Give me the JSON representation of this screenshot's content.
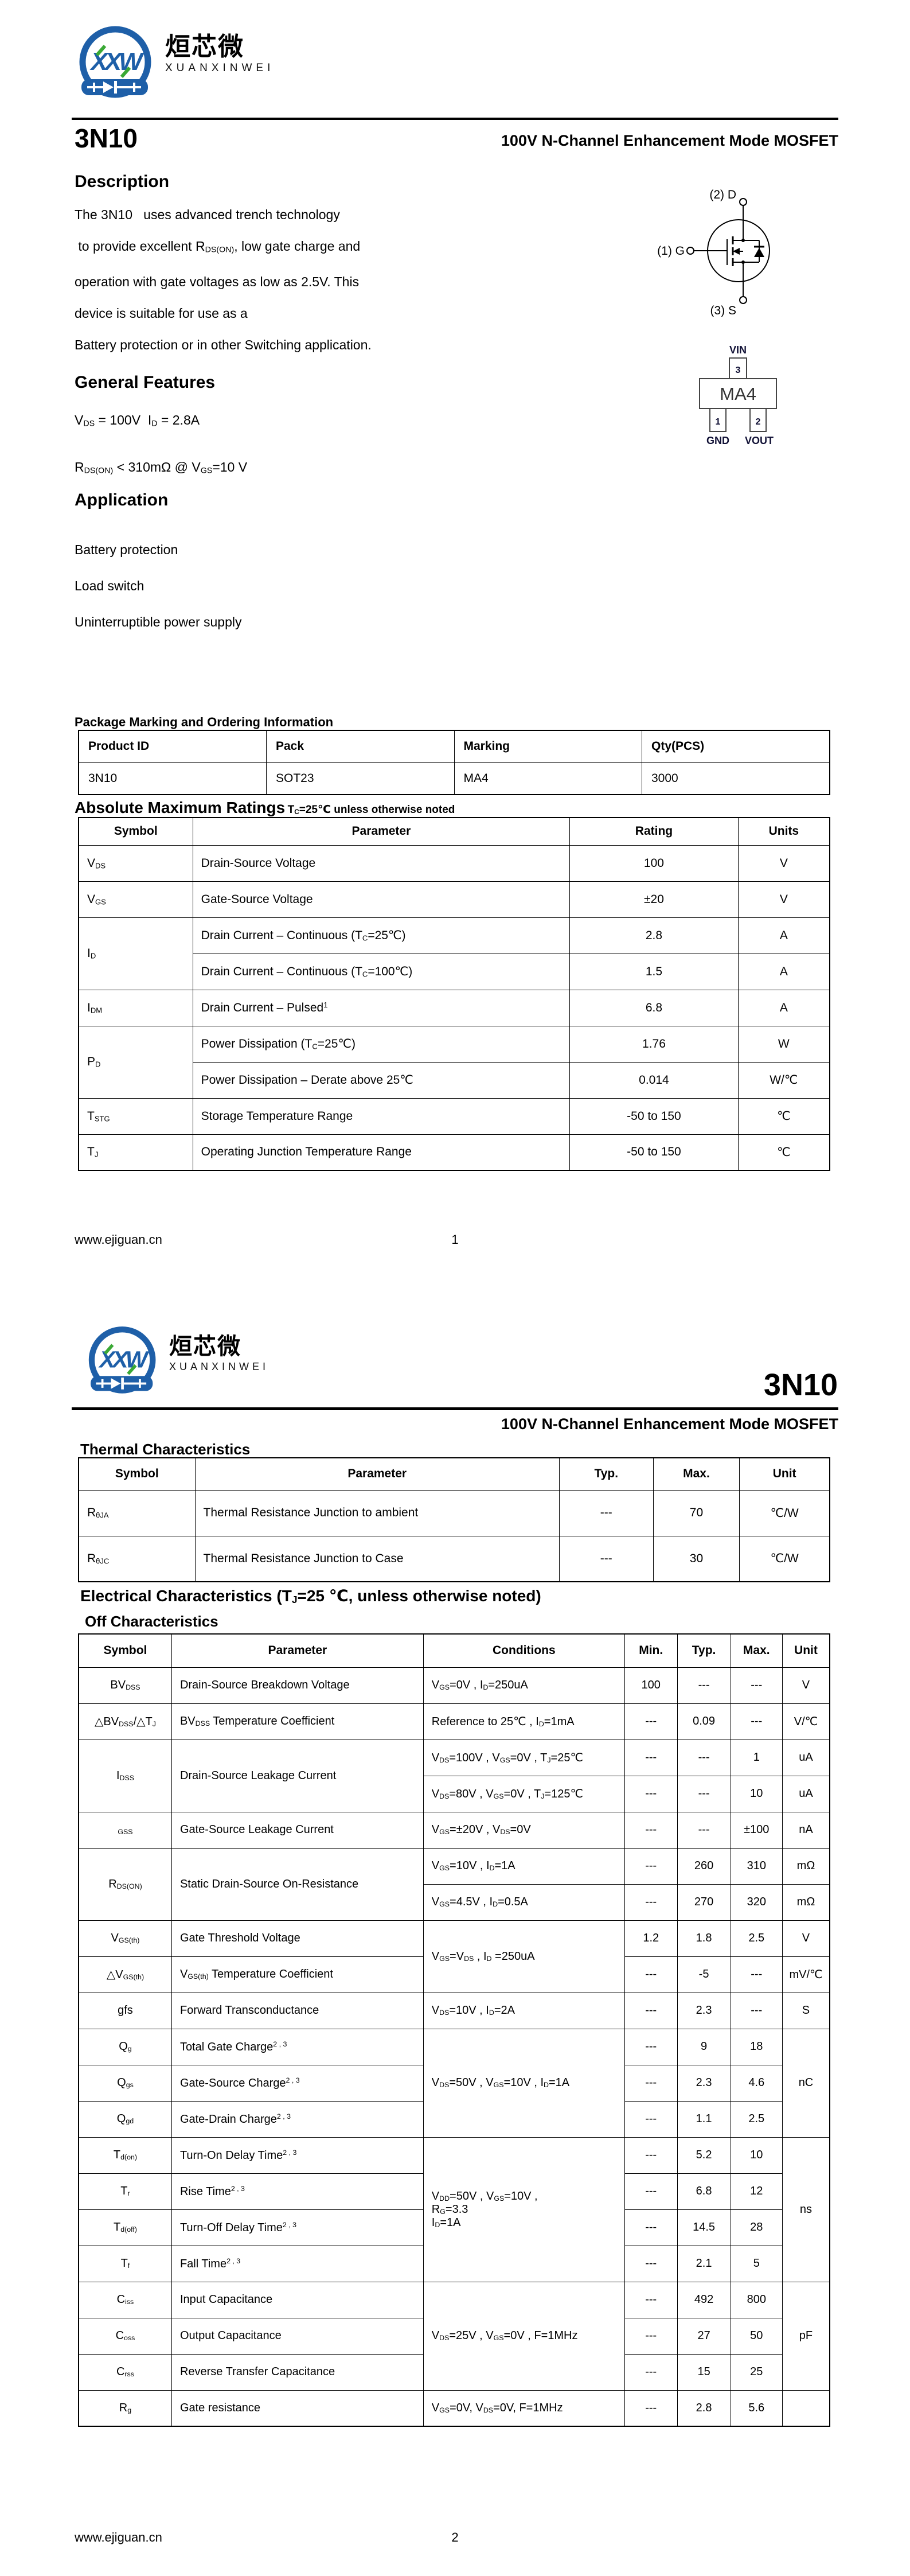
{
  "brand": {
    "logo_monogram": "XXW",
    "logo_cn": "烜芯微",
    "logo_en": "XUANXINWEI",
    "accent_blue": "#1e5fa8",
    "accent_green": "#3aa935"
  },
  "footer": {
    "site": "www.ejiguan.cn"
  },
  "page1": {
    "part_number": "3N10",
    "subtitle": "100V N-Channel Enhancement Mode MOSFET",
    "page_number": "1",
    "description": {
      "title": "Description",
      "lines": [
        "The 3N10   uses advanced trench technology",
        " to provide excellent R~DS(ON)~, low gate charge and",
        "operation with gate voltages as low as 2.5V. This",
        "device is suitable for use as a",
        "Battery protection or in other Switching application."
      ]
    },
    "general_features": {
      "title": "General Features",
      "lines": [
        "V~DS~ = 100V  I~D~ = 2.8A",
        "R~DS(ON)~ < 310mΩ @ V~GS~=10 V"
      ]
    },
    "application": {
      "title": "Application",
      "items": [
        "Battery protection",
        "Load switch",
        "Uninterruptible power supply"
      ]
    },
    "mosfet_symbol": {
      "drain": "(2) D",
      "gate": "(1) G",
      "source": "(3) S"
    },
    "package_diagram": {
      "top_label": "VIN",
      "pin3": "3",
      "marking": "MA4",
      "pin1": "1",
      "pin2": "2",
      "bottom_left": "GND",
      "bottom_right": "VOUT"
    },
    "ordering": {
      "title": "Package Marking and Ordering Information",
      "headers": [
        "Product ID",
        "Pack",
        "Marking",
        "Qty(PCS)"
      ],
      "rows": [
        [
          "3N10",
          "SOT23",
          "MA4",
          "3000"
        ]
      ]
    },
    "abs_max": {
      "title": "Absolute Maximum Ratings",
      "note": "T~C~=25℃ unless otherwise noted",
      "headers": [
        "Symbol",
        "Parameter",
        "Rating",
        "Units"
      ],
      "rows": [
        [
          {
            "t": "V~DS~",
            "cls": "l"
          },
          {
            "t": "Drain-Source Voltage",
            "cls": "l"
          },
          "100",
          "V"
        ],
        [
          {
            "t": "V~GS~",
            "cls": "l"
          },
          {
            "t": "Gate-Source Voltage",
            "cls": "l"
          },
          "±20",
          "V"
        ],
        [
          {
            "t": "I~D~",
            "cls": "l",
            "rs": 2
          },
          {
            "t": "Drain Current – Continuous (T~C~=25℃)",
            "cls": "l"
          },
          "2.8",
          "A"
        ],
        [
          {
            "t": "Drain Current – Continuous (T~C~=100℃)",
            "cls": "l"
          },
          "1.5",
          "A"
        ],
        [
          {
            "t": "I~DM~",
            "cls": "l"
          },
          {
            "t": "Drain Current – Pulsed^1^",
            "cls": "l"
          },
          "6.8",
          "A"
        ],
        [
          {
            "t": "P~D~",
            "cls": "l",
            "rs": 2
          },
          {
            "t": "Power Dissipation (T~C~=25℃)",
            "cls": "l"
          },
          "1.76",
          "W"
        ],
        [
          {
            "t": "Power Dissipation – Derate above 25℃",
            "cls": "l"
          },
          "0.014",
          "W/℃"
        ],
        [
          {
            "t": "T~STG~",
            "cls": "l"
          },
          {
            "t": "Storage Temperature Range",
            "cls": "l"
          },
          "-50 to 150",
          "℃"
        ],
        [
          {
            "t": "T~J~",
            "cls": "l"
          },
          {
            "t": "Operating Junction Temperature Range",
            "cls": "l"
          },
          "-50 to 150",
          "℃"
        ]
      ]
    }
  },
  "page2": {
    "part_number": "3N10",
    "subtitle": "100V N-Channel Enhancement Mode MOSFET",
    "page_number": "2",
    "thermal": {
      "title": "Thermal Characteristics",
      "headers": [
        "Symbol",
        "Parameter",
        "Typ.",
        "Max.",
        "Unit"
      ],
      "rows": [
        [
          {
            "t": "R~θJA~",
            "cls": "l"
          },
          {
            "t": "Thermal Resistance Junction to ambient",
            "cls": "l"
          },
          "---",
          "70",
          "℃/W"
        ],
        [
          {
            "t": "R~θJC~",
            "cls": "l"
          },
          {
            "t": "Thermal Resistance Junction to Case",
            "cls": "l"
          },
          "---",
          "30",
          "℃/W"
        ]
      ]
    },
    "electrical": {
      "title": "Electrical Characteristics (T~J~=25 ℃, unless otherwise noted)",
      "subtitle": "Off Characteristics",
      "headers": [
        "Symbol",
        "Parameter",
        "Conditions",
        "Min.",
        "Typ.",
        "Max.",
        "Unit"
      ],
      "rows": [
        [
          "BV~DSS~",
          {
            "t": "Drain-Source Breakdown Voltage",
            "cls": "l"
          },
          {
            "t": "V~GS~=0V , I~D~=250uA",
            "cls": "l"
          },
          "100",
          "---",
          "---",
          "V"
        ],
        [
          "△BV~DSS~/△T~J~",
          {
            "t": "BV~DSS~ Temperature Coefficient",
            "cls": "l"
          },
          {
            "t": "Reference to 25℃ , I~D~=1mA",
            "cls": "l"
          },
          "---",
          "0.09",
          "---",
          "V/℃"
        ],
        [
          {
            "t": "I~DSS~",
            "rs": 2
          },
          {
            "t": "Drain-Source Leakage Current",
            "cls": "l",
            "rs": 2
          },
          {
            "t": "V~DS~=100V , V~GS~=0V , T~J~=25℃",
            "cls": "l"
          },
          "---",
          "---",
          "1",
          "uA"
        ],
        [
          {
            "t": "V~DS~=80V , V~GS~=0V , T~J~=125℃",
            "cls": "l"
          },
          "---",
          "---",
          "10",
          "uA"
        ],
        [
          "~GSS~",
          {
            "t": "Gate-Source Leakage Current",
            "cls": "l"
          },
          {
            "t": "V~GS~=±20V , V~DS~=0V",
            "cls": "l"
          },
          "---",
          "---",
          "±100",
          "nA"
        ],
        [
          {
            "t": "R~DS(ON)~",
            "rs": 2
          },
          {
            "t": "Static Drain-Source On-Resistance",
            "cls": "l",
            "rs": 2
          },
          {
            "t": "V~GS~=10V , I~D~=1A",
            "cls": "l"
          },
          "---",
          "260",
          "310",
          "mΩ"
        ],
        [
          {
            "t": "V~GS~=4.5V , I~D~=0.5A",
            "cls": "l"
          },
          "---",
          "270",
          "320",
          "mΩ"
        ],
        [
          "V~GS(th)~",
          {
            "t": "Gate Threshold Voltage",
            "cls": "l"
          },
          {
            "t": "V~GS~=V~DS~ , I~D~ =250uA",
            "cls": "l",
            "rs": 2
          },
          "1.2",
          "1.8",
          "2.5",
          "V"
        ],
        [
          "△V~GS(th)~",
          {
            "t": "V~GS(th)~ Temperature Coefficient",
            "cls": "l"
          },
          "---",
          "-5",
          "---",
          "mV/℃"
        ],
        [
          "gfs",
          {
            "t": "Forward Transconductance",
            "cls": "l"
          },
          {
            "t": "V~DS~=10V , I~D~=2A",
            "cls": "l"
          },
          "---",
          "2.3",
          "---",
          "S"
        ],
        [
          "Q~g~",
          {
            "t": "Total Gate Charge^2 , 3^",
            "cls": "l"
          },
          {
            "t": "V~DS~=50V , V~GS~=10V , I~D~=1A",
            "cls": "l",
            "rs": 3
          },
          "---",
          "9",
          "18",
          {
            "t": "nC",
            "rs": 3
          }
        ],
        [
          "Q~gs~",
          {
            "t": "Gate-Source Charge^2 , 3^",
            "cls": "l"
          },
          "---",
          "2.3",
          "4.6"
        ],
        [
          "Q~gd~",
          {
            "t": "Gate-Drain Charge^2 , 3^",
            "cls": "l"
          },
          "---",
          "1.1",
          "2.5"
        ],
        [
          "T~d(on)~",
          {
            "t": "Turn-On Delay Time^2 , 3^",
            "cls": "l"
          },
          {
            "t": "V~DD~=50V , V~GS~=10V ,\nR~G~=3.3\nI~D~=1A",
            "cls": "l",
            "rs": 4
          },
          "---",
          "5.2",
          "10",
          {
            "t": "ns",
            "rs": 4
          }
        ],
        [
          "T~r~",
          {
            "t": "Rise Time^2 , 3^",
            "cls": "l"
          },
          "---",
          "6.8",
          "12"
        ],
        [
          "T~d(off)~",
          {
            "t": "Turn-Off Delay Time^2 , 3^",
            "cls": "l"
          },
          "---",
          "14.5",
          "28"
        ],
        [
          "T~f~",
          {
            "t": "Fall Time^2 , 3^",
            "cls": "l"
          },
          "---",
          "2.1",
          "5"
        ],
        [
          "C~iss~",
          {
            "t": "Input Capacitance",
            "cls": "l"
          },
          {
            "t": "V~DS~=25V , V~GS~=0V , F=1MHz",
            "cls": "l",
            "rs": 3
          },
          "---",
          "492",
          "800",
          {
            "t": "pF",
            "rs": 3
          }
        ],
        [
          "C~oss~",
          {
            "t": "Output Capacitance",
            "cls": "l"
          },
          "---",
          "27",
          "50"
        ],
        [
          "C~rss~",
          {
            "t": "Reverse Transfer Capacitance",
            "cls": "l"
          },
          "---",
          "15",
          "25"
        ],
        [
          "R~g~",
          {
            "t": "Gate resistance",
            "cls": "l"
          },
          {
            "t": "V~GS~=0V, V~DS~=0V, F=1MHz",
            "cls": "l"
          },
          "---",
          "2.8",
          "5.6",
          ""
        ]
      ]
    }
  }
}
